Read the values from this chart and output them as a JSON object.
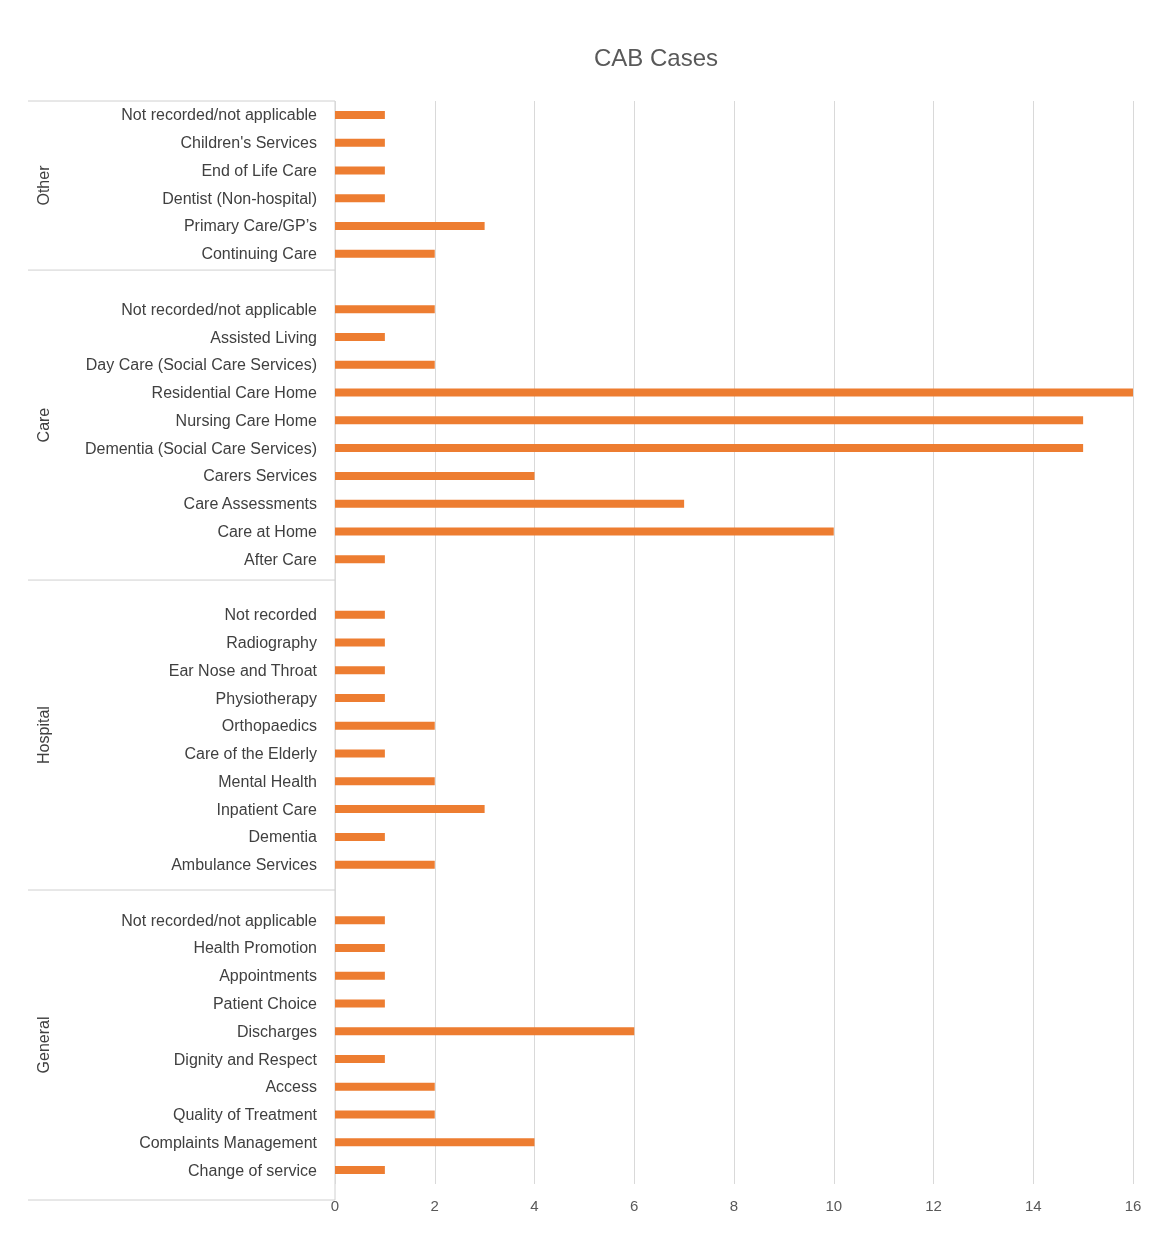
{
  "chart_data": {
    "type": "bar",
    "orientation": "horizontal",
    "title": "CAB Cases",
    "categories": [
      "Not recorded/not applicable",
      "Children's Services",
      "End of Life Care",
      "Dentist (Non-hospital)",
      "Primary Care/GP’s",
      "Continuing Care",
      null,
      "Not recorded/not applicable",
      "Assisted Living",
      "Day Care (Social Care Services)",
      "Residential Care Home",
      "Nursing Care Home",
      "Dementia (Social Care Services)",
      "Carers Services",
      "Care Assessments",
      "Care at Home",
      "After Care",
      null,
      "Not recorded",
      "Radiography",
      "Ear Nose and Throat",
      "Physiotherapy",
      "Orthopaedics",
      "Care of the Elderly",
      "Mental Health",
      "Inpatient Care",
      "Dementia",
      "Ambulance Services",
      null,
      "Not recorded/not applicable",
      "Health Promotion",
      "Appointments",
      "Patient Choice",
      "Discharges",
      "Dignity and Respect",
      "Access",
      "Quality of Treatment",
      "Complaints Management",
      "Change of service"
    ],
    "values": [
      1,
      1,
      1,
      1,
      3,
      2,
      null,
      2,
      1,
      2,
      16,
      15,
      15,
      4,
      7,
      10,
      1,
      null,
      1,
      1,
      1,
      1,
      2,
      1,
      2,
      3,
      1,
      2,
      null,
      1,
      1,
      1,
      1,
      6,
      1,
      2,
      2,
      4,
      1
    ],
    "color": "#ed7d31",
    "annotations": [
      "Other",
      "Care",
      "Hospital",
      "General"
    ],
    "xlim": [
      0,
      16
    ],
    "xticks": [
      0,
      2,
      4,
      6,
      8,
      10,
      12,
      14,
      16
    ],
    "grid": "x"
  }
}
